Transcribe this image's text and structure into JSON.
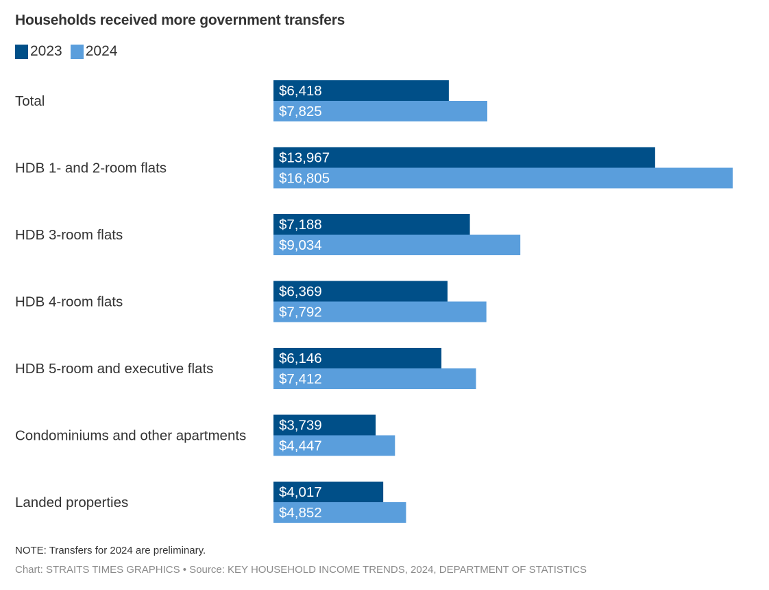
{
  "chart_data": {
    "type": "bar",
    "orientation": "horizontal",
    "title": "Households received more government transfers",
    "categories": [
      "Total",
      "HDB 1- and 2-room flats",
      "HDB 3-room flats",
      "HDB 4-room flats",
      "HDB 5-room and executive flats",
      "Condominiums and other apartments",
      "Landed properties"
    ],
    "series": [
      {
        "name": "2023",
        "color": "#004f88",
        "values": [
          6418,
          13967,
          7188,
          6369,
          6146,
          3739,
          4017
        ],
        "labels": [
          "$6,418",
          "$13,967",
          "$7,188",
          "$6,369",
          "$6,146",
          "$3,739",
          "$4,017"
        ]
      },
      {
        "name": "2024",
        "color": "#5a9edc",
        "values": [
          7825,
          16805,
          9034,
          7792,
          7412,
          4447,
          4852
        ],
        "labels": [
          "$7,825",
          "$16,805",
          "$9,034",
          "$7,792",
          "$7,412",
          "$4,447",
          "$4,852"
        ]
      }
    ],
    "xlabel": "",
    "ylabel": "",
    "xlim": [
      0,
      16805
    ],
    "grid": false,
    "legend_position": "top-left"
  },
  "note": "NOTE: Transfers for 2024 are preliminary.",
  "source": "Chart: STRAITS TIMES GRAPHICS • Source: KEY HOUSEHOLD INCOME TRENDS, 2024, DEPARTMENT OF STATISTICS"
}
